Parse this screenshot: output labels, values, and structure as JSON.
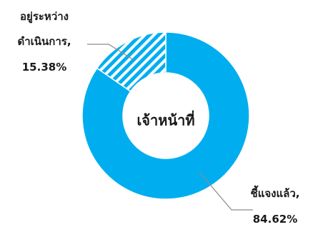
{
  "chart_data": {
    "type": "pie",
    "variant": "donut",
    "center_label": "เจ้าหน้าที่",
    "categories": [
      "ชี้แจงแล้ว",
      "อยู่ระหว่างดำเนินการ"
    ],
    "values": [
      84.62,
      15.38
    ],
    "unit": "%",
    "legend": "none",
    "slices": [
      {
        "label_lines": [
          "ชี้แจงแล้ว,",
          "84.62%"
        ],
        "value": 84.62,
        "color": "#00AEEF",
        "pattern": "solid"
      },
      {
        "label_lines": [
          "อยู่ระหว่าง",
          "ดำเนินการ,",
          "15.38%"
        ],
        "value": 15.38,
        "color": "#00AEEF",
        "pattern": "diagonal-stripes"
      }
    ]
  }
}
